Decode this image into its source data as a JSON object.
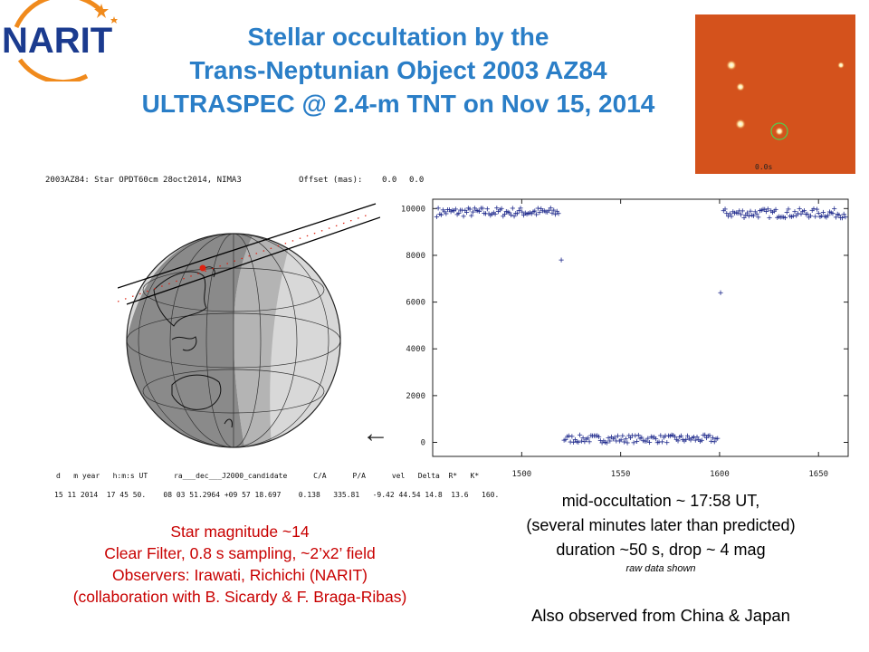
{
  "logo": {
    "text": "NARIT"
  },
  "title": {
    "line1": "Stellar occultation by the",
    "line2": "Trans-Neptunian Object 2003 AZ84",
    "line3": "ULTRASPEC @ 2.4-m TNT on Nov 15, 2014"
  },
  "image_label": "0.0s",
  "globe_panel": {
    "header": "2003AZ84: Star OPDT60cm 28oct2014, NIMA3",
    "offset_label": "Offset (mas):",
    "offset_x": "0.0",
    "offset_y": "0.0",
    "table_header": "d   m year   h:m:s UT      ra___dec___J2000_candidate      C/A      P/A      vel   Delta  R*   K*",
    "table_values": "15 11 2014  17 45 50.    08 03 51.2964 +09 57 18.697    0.138   335.81   -9.42 44.54 14.8  13.6   160.",
    "arrow": "←"
  },
  "chart_data": {
    "type": "scatter",
    "title": "",
    "xlabel": "",
    "ylabel": "",
    "xlim": [
      1455,
      1665
    ],
    "ylim": [
      -600,
      10400
    ],
    "xticks": [
      1500,
      1550,
      1600,
      1650
    ],
    "yticks": [
      0,
      2000,
      4000,
      6000,
      8000,
      10000
    ],
    "marker": "+",
    "color": "#1f2a8c",
    "grid": false,
    "segments": [
      {
        "x_start": 1457,
        "x_end": 1519,
        "step": 0.8,
        "level": 9850,
        "scatter": 200
      },
      {
        "x_start": 1521.4,
        "x_end": 1599,
        "step": 0.8,
        "level": 150,
        "scatter": 170
      },
      {
        "x_start": 1602,
        "x_end": 1664,
        "step": 0.8,
        "level": 9800,
        "scatter": 200
      }
    ],
    "points": [
      {
        "x": 1520,
        "y": 7800
      },
      {
        "x": 1600.5,
        "y": 6400
      }
    ]
  },
  "notes_left": {
    "line1": "Star magnitude ~14",
    "line2": "Clear Filter, 0.8 s sampling, ~2’x2’ field",
    "line3": "Observers: Irawati, Richichi (NARIT)",
    "line4": "(collaboration with B. Sicardy & F. Braga-Ribas)"
  },
  "notes_right": {
    "line1": "mid-occultation ~ 17:58 UT,",
    "line2": "(several minutes later than predicted)",
    "line3": "duration ~50 s, drop ~ 4 mag",
    "line4": "raw data shown"
  },
  "also": "Also observed from China & Japan",
  "colors": {
    "title": "#2a7ec7",
    "notes_left": "#c80000",
    "logo_blue": "#1b3b8f",
    "logo_orange": "#f08a1c",
    "astro_bg": "#d4521c"
  }
}
